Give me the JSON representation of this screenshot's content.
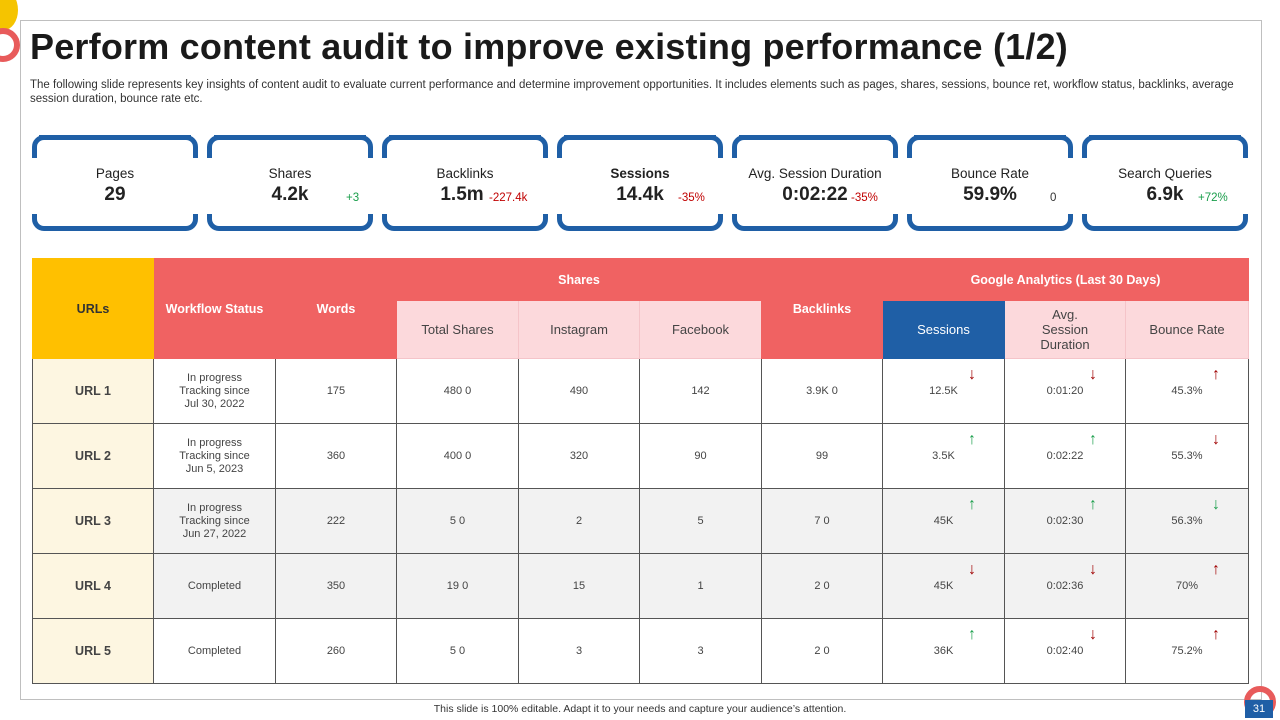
{
  "slide": {
    "title": "Perform content audit to improve existing performance (1/2)",
    "subtitle": "The following slide represents key insights of content audit to  evaluate current performance and determine improvement opportunities. It includes elements such as pages, shares, sessions, bounce ret, workflow status, backlinks, average session duration, bounce rate etc.",
    "footer": "This slide is 100% editable.  Adapt it to your needs and capture your audience’s attention.",
    "page_number": "31"
  },
  "kpis": [
    {
      "label": "Pages",
      "value": "29",
      "delta": "",
      "tone": "neu"
    },
    {
      "label": "Shares",
      "value": "4.2k",
      "delta": "+3",
      "tone": "pos"
    },
    {
      "label": "Backlinks",
      "value": "1.5m",
      "delta": "-227.4k",
      "tone": "neg"
    },
    {
      "label": "Sessions",
      "value": "14.4k",
      "delta": "-35%",
      "tone": "neg"
    },
    {
      "label": "Avg. Session Duration",
      "value": "0:02:22",
      "delta": "-35%",
      "tone": "neg"
    },
    {
      "label": "Bounce Rate",
      "value": "59.9%",
      "delta": "0",
      "tone": "neu"
    },
    {
      "label": "Search Queries",
      "value": "6.9k",
      "delta": "+72%",
      "tone": "pos"
    }
  ],
  "table": {
    "headers": {
      "urls": "URLs",
      "workflow": "Workflow Status",
      "words": "Words",
      "shares": "Shares",
      "total_shares": "Total Shares",
      "instagram": "Instagram",
      "facebook": "Facebook",
      "backlinks": "Backlinks",
      "google": "Google Analytics (Last 30 Days)",
      "sessions": "Sessions",
      "avg_duration": "Avg. Session Duration",
      "bounce_rate": "Bounce Rate"
    },
    "rows": [
      {
        "url": "URL 1",
        "wf1": "In progress",
        "wf2": "Tracking since",
        "wf3": "Jul 30, 2022",
        "words": "175",
        "total": "480  0",
        "instagram": "490",
        "facebook": "142",
        "backlinks": "3.9K  0",
        "sessions": "12.5K",
        "sessions_arrow": "↓",
        "duration": "0:01:20",
        "duration_arrow": "↓",
        "bounce": "45.3%",
        "bounce_arrow": "↑"
      },
      {
        "url": "URL 2",
        "wf1": "In progress",
        "wf2": "Tracking since",
        "wf3": "Jun 5, 2023",
        "words": "360",
        "total": "400  0",
        "instagram": "320",
        "facebook": "90",
        "backlinks": "99",
        "sessions": "3.5K",
        "sessions_arrow": "↑",
        "duration": "0:02:22",
        "duration_arrow": "↑",
        "bounce": "55.3%",
        "bounce_arrow": "↓"
      },
      {
        "url": "URL 3",
        "wf1": "In progress",
        "wf2": "Tracking since",
        "wf3": "Jun 27, 2022",
        "words": "222",
        "total": "5  0",
        "instagram": "2",
        "facebook": "5",
        "backlinks": "7  0",
        "sessions": "45K",
        "sessions_arrow": "↑",
        "duration": "0:02:30",
        "duration_arrow": "↑",
        "bounce": "56.3%",
        "bounce_arrow": "↓"
      },
      {
        "url": "URL 4",
        "wf1": "Completed",
        "wf2": "",
        "wf3": "",
        "words": "350",
        "total": "19  0",
        "instagram": "15",
        "facebook": "1",
        "backlinks": "2  0",
        "sessions": "45K",
        "sessions_arrow": "↓",
        "duration": "0:02:36",
        "duration_arrow": "↓",
        "bounce": "70%",
        "bounce_arrow": "↑"
      },
      {
        "url": "URL 5",
        "wf1": "Completed",
        "wf2": "",
        "wf3": "",
        "words": "260",
        "total": "5  0",
        "instagram": "3",
        "facebook": "3",
        "backlinks": "2  0",
        "sessions": "36K",
        "sessions_arrow": "↑",
        "duration": "0:02:40",
        "duration_arrow": "↓",
        "bounce": "75.2%",
        "bounce_arrow": "↑"
      }
    ]
  },
  "colors": {
    "accent_blue": "#1f5fa6",
    "header_red": "#f06262",
    "header_yellow": "#ffc000",
    "header_pink": "#fcd9dc",
    "up_green": "#1a9e4b",
    "down_red": "#a00000"
  }
}
